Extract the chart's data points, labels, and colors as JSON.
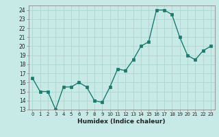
{
  "x": [
    0,
    1,
    2,
    3,
    4,
    5,
    6,
    7,
    8,
    9,
    10,
    11,
    12,
    13,
    14,
    15,
    16,
    17,
    18,
    19,
    20,
    21,
    22,
    23
  ],
  "y": [
    16.5,
    15.0,
    15.0,
    13.0,
    15.5,
    15.5,
    16.0,
    15.5,
    14.0,
    13.8,
    15.5,
    17.5,
    17.3,
    18.5,
    20.0,
    20.5,
    24.0,
    24.0,
    23.5,
    21.0,
    19.0,
    18.5,
    19.5,
    20.0
  ],
  "line_color": "#1a7a6e",
  "marker_color": "#1a7a6e",
  "bg_color": "#c8eae6",
  "grid_color": "#b0d8d4",
  "xlabel": "Humidex (Indice chaleur)",
  "xlim": [
    -0.5,
    23.5
  ],
  "ylim": [
    13,
    24.5
  ],
  "yticks": [
    13,
    14,
    15,
    16,
    17,
    18,
    19,
    20,
    21,
    22,
    23,
    24
  ],
  "xticks": [
    0,
    1,
    2,
    3,
    4,
    5,
    6,
    7,
    8,
    9,
    10,
    11,
    12,
    13,
    14,
    15,
    16,
    17,
    18,
    19,
    20,
    21,
    22,
    23
  ],
  "xtick_labels": [
    "0",
    "1",
    "2",
    "3",
    "4",
    "5",
    "6",
    "7",
    "8",
    "9",
    "10",
    "11",
    "12",
    "13",
    "14",
    "15",
    "16",
    "17",
    "18",
    "19",
    "20",
    "21",
    "22",
    "23"
  ]
}
